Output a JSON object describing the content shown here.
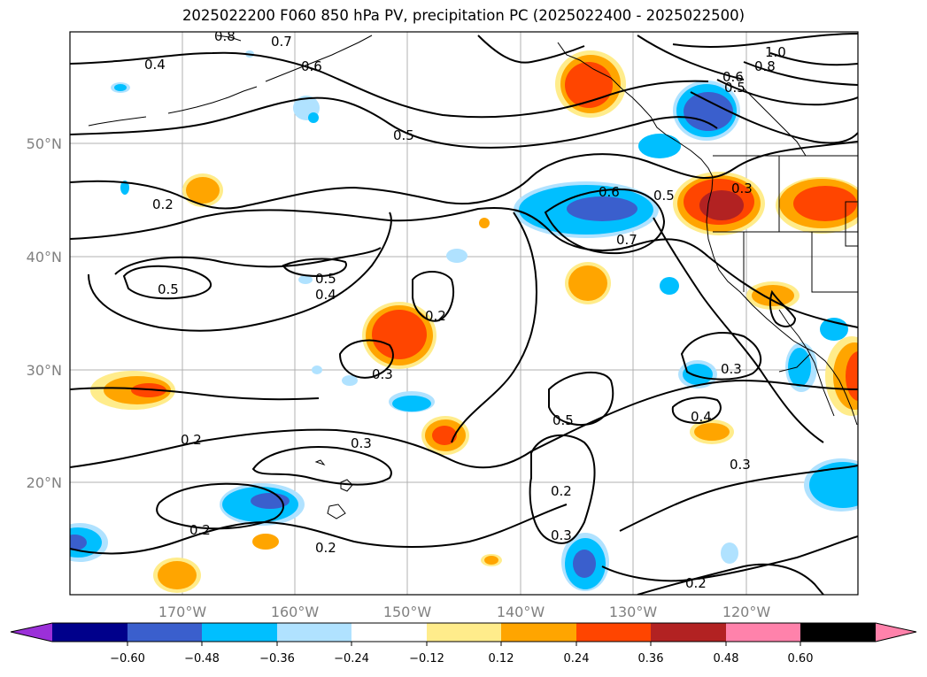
{
  "title": "2025022200 F060 850 hPa PV, precipitation PC (2025022400 - 2025022500)",
  "longitude_labels": [
    "170°W",
    "160°W",
    "150°W",
    "140°W",
    "130°W",
    "120°W"
  ],
  "latitude_labels": [
    "50°N",
    "40°N",
    "30°N",
    "20°N"
  ],
  "contour_labels": [
    "0.8",
    "0.7",
    "0.6",
    "0.4",
    "1.0",
    "0.8",
    "0.6",
    "0.5",
    "0.5",
    "0.2",
    "0.6",
    "0.5",
    "0.3",
    "0.7",
    "0.5",
    "0.5",
    "0.4",
    "0.2",
    "0.3",
    "0.2",
    "0.3",
    "0.5",
    "0.3",
    "0.4",
    "0.2",
    "0.2",
    "0.3",
    "0.3",
    "0.2",
    "0.2"
  ],
  "colorbar": {
    "ticks": [
      "−0.60",
      "−0.48",
      "−0.36",
      "−0.24",
      "−0.12",
      "0.12",
      "0.24",
      "0.36",
      "0.48",
      "0.60"
    ],
    "colors": [
      "#9b30d9",
      "#00008b",
      "#3a5fcd",
      "#00bfff",
      "#b0e2ff",
      "#ffffff",
      "#ffec8b",
      "#ffa500",
      "#ff4500",
      "#b22222",
      "#ff82ab"
    ]
  },
  "precip_colors": {
    "neg_light": "#b0e2ff",
    "neg_mid": "#00bfff",
    "neg_strong": "#3a5fcd",
    "neg_max": "#9b30d9",
    "pos_light": "#ffec8b",
    "pos_mid": "#ffa500",
    "pos_strong": "#ff4500",
    "pos_max": "#b22222"
  }
}
